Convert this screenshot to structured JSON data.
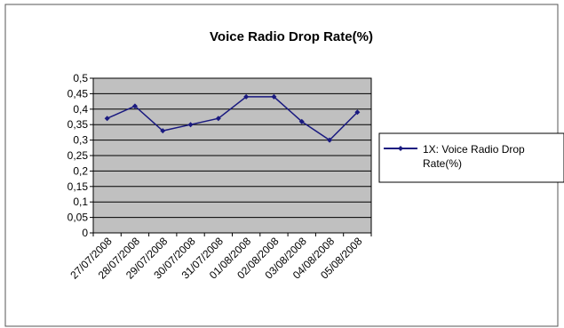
{
  "chart_data": {
    "type": "line",
    "title": "Voice Radio Drop Rate(%)",
    "xlabel": "",
    "ylabel": "",
    "categories": [
      "27/07/2008",
      "28/07/2008",
      "29/07/2008",
      "30/07/2008",
      "31/07/2008",
      "01/08/2008",
      "02/08/2008",
      "03/08/2008",
      "04/08/2008",
      "05/08/2008"
    ],
    "series": [
      {
        "name": "1X: Voice Radio Drop Rate(%)",
        "legend_lines": [
          "1X: Voice Radio Drop",
          "Rate(%)"
        ],
        "values": [
          0.37,
          0.41,
          0.33,
          0.35,
          0.37,
          0.44,
          0.44,
          0.36,
          0.3,
          0.39
        ]
      }
    ],
    "ylim": [
      0,
      0.5
    ],
    "yticks": [
      "0",
      "0,05",
      "0,1",
      "0,15",
      "0,2",
      "0,25",
      "0,3",
      "0,35",
      "0,4",
      "0,45",
      "0,5"
    ],
    "grid": true,
    "legend": "right",
    "colors": {
      "line": "#1a1a80",
      "plot_bg": "#c0c0c0",
      "border": "#000000"
    }
  }
}
